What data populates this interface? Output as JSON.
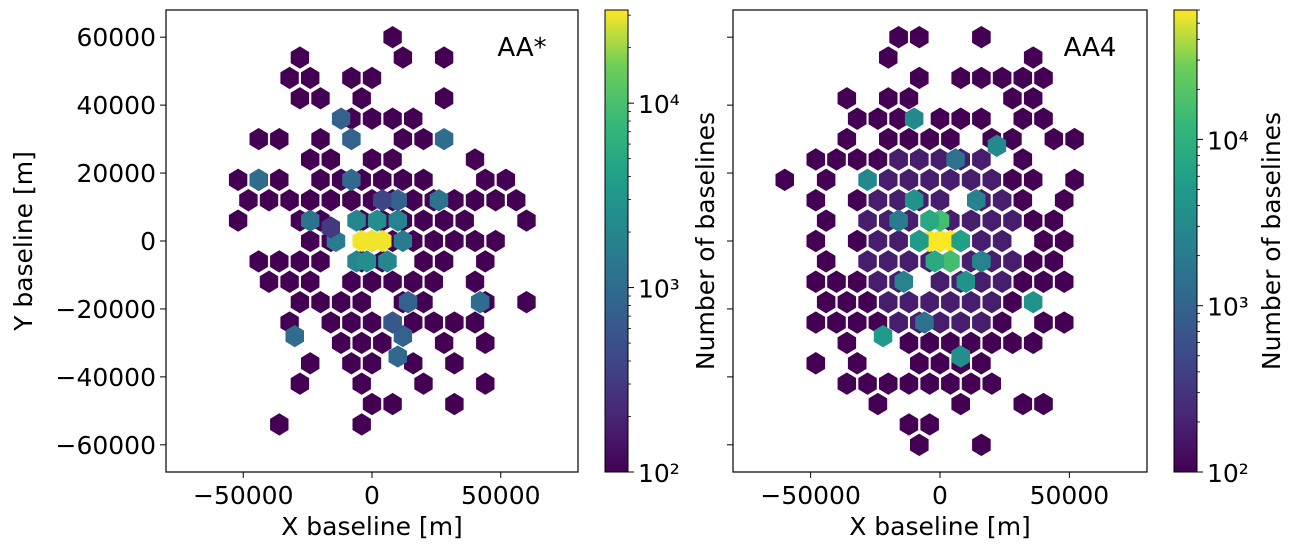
{
  "chart_data": [
    {
      "type": "hexbin",
      "title": "AA*",
      "xlabel": "X baseline [m]",
      "ylabel": "Y baseline [m]",
      "xlim": [
        -80000,
        80000
      ],
      "ylim": [
        -68000,
        68000
      ],
      "xticks": [
        -50000,
        0,
        50000
      ],
      "xtick_labels": [
        "−50000",
        "0",
        "50000"
      ],
      "yticks": [
        -60000,
        -40000,
        -20000,
        0,
        20000,
        40000,
        60000
      ],
      "ytick_labels": [
        "−60000",
        "−40000",
        "−20000",
        "0",
        "20000",
        "40000",
        "60000"
      ],
      "colorbar": {
        "label": "Number of baselines",
        "scale": "log",
        "range": [
          100,
          32000
        ],
        "ticks": [
          100,
          1000,
          10000
        ],
        "tick_labels": [
          "10²",
          "10³",
          "10⁴"
        ]
      },
      "bins": [
        {
          "x": 0,
          "y": 0,
          "count": 30000
        },
        {
          "x": -4000,
          "y": 0,
          "count": 30000
        },
        {
          "x": 4000,
          "y": 0,
          "count": 30000
        },
        {
          "x": 12000,
          "y": 0,
          "count": 1500
        },
        {
          "x": -14000,
          "y": 0,
          "count": 1500
        },
        {
          "x": -6000,
          "y": 6000,
          "count": 2000
        },
        {
          "x": 2000,
          "y": 6000,
          "count": 2500
        },
        {
          "x": 10000,
          "y": 6000,
          "count": 1800
        },
        {
          "x": -6000,
          "y": -6000,
          "count": 2000
        },
        {
          "x": -2000,
          "y": -6000,
          "count": 2500
        },
        {
          "x": 6000,
          "y": -6000,
          "count": 2000
        },
        {
          "x": -24000,
          "y": 6000,
          "count": 1200
        },
        {
          "x": 26000,
          "y": 12000,
          "count": 1200
        },
        {
          "x": 10000,
          "y": 12000,
          "count": 800
        },
        {
          "x": -8000,
          "y": 18000,
          "count": 900
        },
        {
          "x": 4000,
          "y": 12000,
          "count": 400
        },
        {
          "x": 14000,
          "y": -18000,
          "count": 800
        },
        {
          "x": -44000,
          "y": 18000,
          "count": 1000
        },
        {
          "x": -12000,
          "y": 36000,
          "count": 800
        },
        {
          "x": -8000,
          "y": 30000,
          "count": 800
        },
        {
          "x": 28000,
          "y": 30000,
          "count": 1000
        },
        {
          "x": 42000,
          "y": -18000,
          "count": 1000
        },
        {
          "x": -30000,
          "y": -28000,
          "count": 1000
        },
        {
          "x": 12000,
          "y": -28000,
          "count": 800
        },
        {
          "x": 8000,
          "y": -24000,
          "count": 600
        },
        {
          "x": 10000,
          "y": -34000,
          "count": 900
        },
        {
          "x": -16000,
          "y": 4000,
          "count": 300
        }
      ]
    },
    {
      "type": "hexbin",
      "title": "AA4",
      "xlabel": "X baseline [m]",
      "ylabel": "",
      "xlim": [
        -80000,
        80000
      ],
      "ylim": [
        -68000,
        68000
      ],
      "xticks": [
        -50000,
        0,
        50000
      ],
      "xtick_labels": [
        "−50000",
        "0",
        "50000"
      ],
      "yticks": [
        -60000,
        -40000,
        -20000,
        0,
        20000,
        40000,
        60000
      ],
      "ytick_labels": [],
      "colorbar": {
        "label": "Number of baselines",
        "scale": "log",
        "range": [
          100,
          60000
        ],
        "ticks": [
          100,
          1000,
          10000
        ],
        "tick_labels": [
          "10²",
          "10³",
          "10⁴"
        ]
      },
      "bins": [
        {
          "x": 0,
          "y": 0,
          "count": 60000
        },
        {
          "x": -4000,
          "y": 0,
          "count": 60000
        },
        {
          "x": 4000,
          "y": 0,
          "count": 60000
        },
        {
          "x": 0,
          "y": 6000,
          "count": 15000
        },
        {
          "x": -4000,
          "y": 6000,
          "count": 8000
        },
        {
          "x": 4000,
          "y": -6000,
          "count": 15000
        },
        {
          "x": -2000,
          "y": -6000,
          "count": 8000
        },
        {
          "x": 8000,
          "y": 0,
          "count": 6000
        },
        {
          "x": -8000,
          "y": 0,
          "count": 5000
        },
        {
          "x": 10000,
          "y": -12000,
          "count": 4000
        },
        {
          "x": -10000,
          "y": 12000,
          "count": 4000
        },
        {
          "x": -22000,
          "y": -28000,
          "count": 5000
        },
        {
          "x": -28000,
          "y": 18000,
          "count": 3000
        },
        {
          "x": 36000,
          "y": -18000,
          "count": 4000
        },
        {
          "x": 22000,
          "y": 28000,
          "count": 3000
        },
        {
          "x": -10000,
          "y": 36000,
          "count": 3000
        },
        {
          "x": 8000,
          "y": -34000,
          "count": 3500
        },
        {
          "x": 14000,
          "y": 12000,
          "count": 2500
        },
        {
          "x": -14000,
          "y": -12000,
          "count": 2500
        },
        {
          "x": 16000,
          "y": -6000,
          "count": 2500
        },
        {
          "x": -16000,
          "y": 6000,
          "count": 2000
        },
        {
          "x": 6000,
          "y": 24000,
          "count": 1500
        },
        {
          "x": -6000,
          "y": -24000,
          "count": 1500
        }
      ]
    }
  ]
}
